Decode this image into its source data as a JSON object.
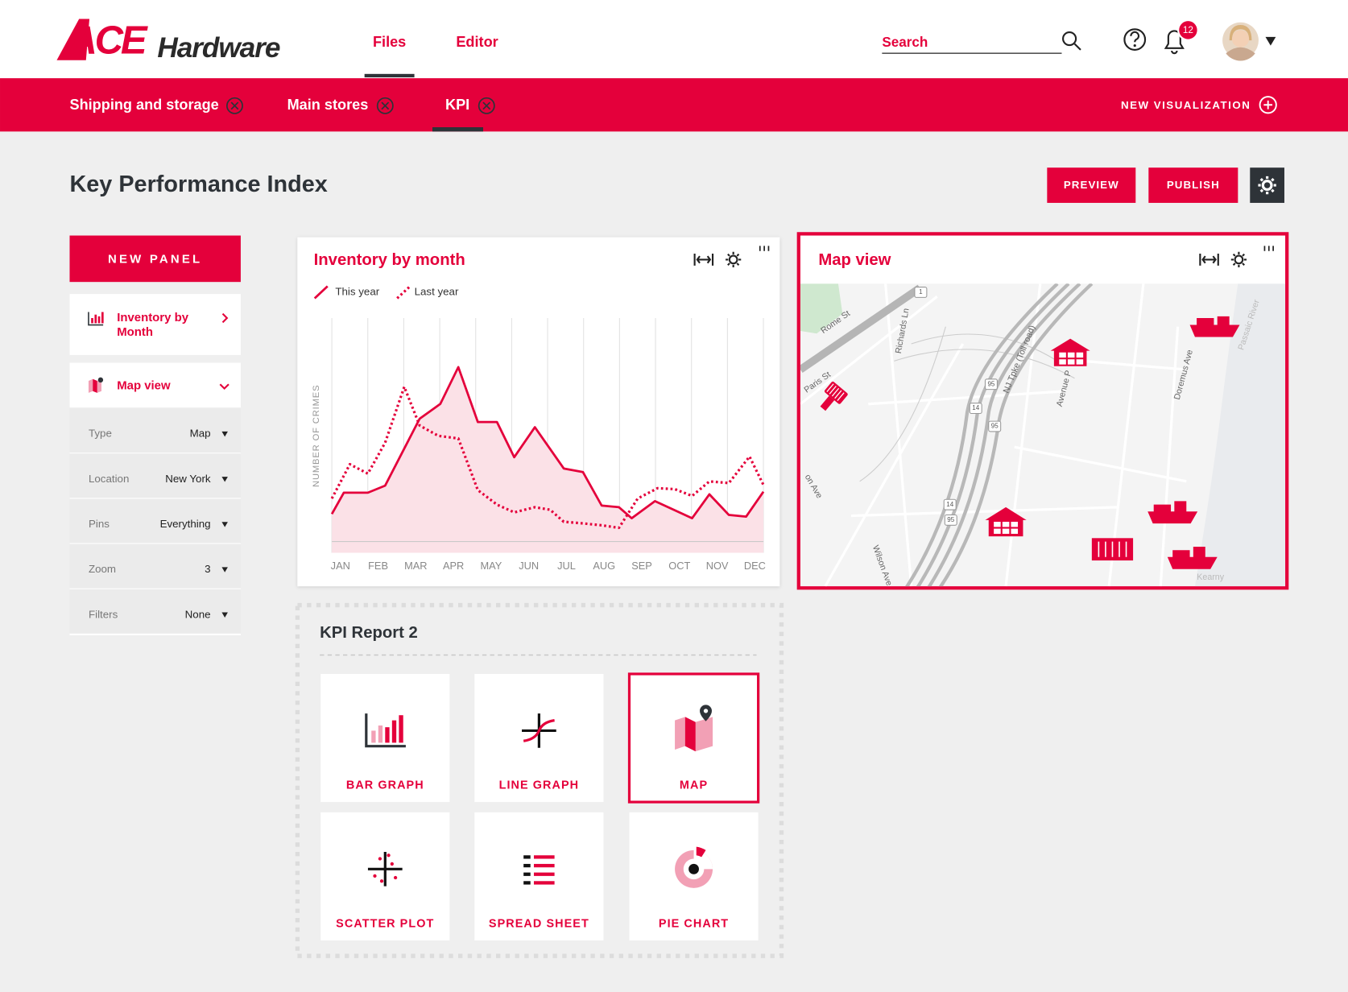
{
  "header": {
    "logo_ace": "ACE",
    "logo_hardware": "Hardware",
    "nav": [
      "Files",
      "Editor"
    ],
    "search": "Search",
    "notifications": "12"
  },
  "tabs": {
    "items": [
      "Shipping and storage",
      "Main stores",
      "KPI"
    ],
    "new_visualization": "NEW VISUALIZATION"
  },
  "page": {
    "title": "Key Performance Index",
    "preview": "PREVIEW",
    "publish": "PUBLISH"
  },
  "sidebar": {
    "new_panel": "NEW PANEL",
    "panels": [
      {
        "lines": [
          "Inventory by",
          "Month"
        ]
      },
      {
        "lines": [
          "Map view"
        ]
      }
    ],
    "settings": [
      {
        "label": "Type",
        "value": "Map"
      },
      {
        "label": "Location",
        "value": "New York"
      },
      {
        "label": "Pins",
        "value": "Everything"
      },
      {
        "label": "Zoom",
        "value": "3"
      },
      {
        "label": "Filters",
        "value": "None"
      }
    ]
  },
  "chart_data": {
    "type": "line",
    "title": "Inventory by month",
    "y_label": "NUMBER OF CRIMES",
    "categories": [
      "JAN",
      "FEB",
      "MAR",
      "APR",
      "MAY",
      "JUN",
      "JUL",
      "AUG",
      "SEP",
      "OCT",
      "NOV",
      "DEC"
    ],
    "xlim": [
      0,
      11.5
    ],
    "ylim": [
      0,
      100
    ],
    "grid": true,
    "series": [
      {
        "name": "This year",
        "color": "#e4003b",
        "style": "solid",
        "area_color": "#fbe1e7",
        "x": [
          0,
          0.32,
          0.96,
          1.42,
          2.34,
          2.89,
          3.37,
          3.89,
          4.4,
          4.86,
          5.41,
          6.18,
          6.69,
          7.19,
          7.65,
          7.99,
          8.61,
          9.6,
          10.06,
          10.58,
          11.04,
          11.5
        ],
        "values": [
          16.5,
          25.6,
          25.6,
          28.6,
          57.1,
          63.4,
          79.1,
          55.7,
          55.7,
          40.7,
          53.5,
          35.9,
          34.4,
          20.1,
          19.4,
          14.7,
          22.0,
          14.7,
          24.9,
          16.1,
          15.4,
          26.0
        ]
      },
      {
        "name": "Last year",
        "color": "#e4003b",
        "style": "dotted",
        "x": [
          0,
          0.48,
          0.96,
          1.42,
          1.93,
          2.34,
          2.84,
          3.37,
          3.89,
          4.4,
          4.86,
          5.41,
          5.82,
          6.18,
          6.69,
          7.19,
          7.65,
          8.15,
          8.68,
          9.14,
          9.6,
          10.06,
          10.58,
          11.13,
          11.5
        ],
        "values": [
          23.1,
          37.7,
          33.7,
          46.9,
          70.7,
          54.2,
          49.8,
          48.7,
          26.7,
          20.5,
          17.2,
          19.4,
          18.3,
          13.2,
          12.5,
          11.7,
          10.6,
          23.1,
          27.5,
          27.1,
          24.2,
          30.4,
          29.7,
          41.0,
          28.9
        ]
      }
    ]
  },
  "map": {
    "title": "Map view",
    "labels": [
      "Rome St",
      "Paris St",
      "Richards Ln",
      "NJ Tpke (Toll road)",
      "Avenue P",
      "Doremus Ave",
      "Passaic River",
      "Wilson Ave",
      "on Ave",
      "Kearny"
    ],
    "shields": [
      "1",
      "95",
      "14",
      "95",
      "14",
      "95"
    ]
  },
  "report": {
    "title": "KPI Report 2",
    "tiles": [
      "BAR GRAPH",
      "LINE GRAPH",
      "MAP",
      "SCATTER PLOT",
      "SPREAD SHEET",
      "PIE CHART"
    ]
  }
}
